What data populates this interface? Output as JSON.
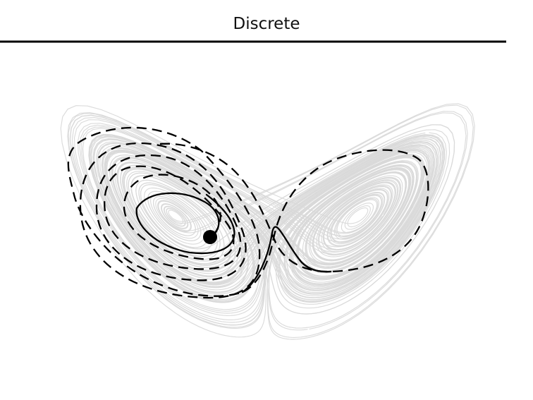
{
  "header": {
    "title": "Discrete"
  },
  "colors": {
    "background": "#ffffff",
    "attractor": "#d9d9d9",
    "trajectory": "#000000",
    "marker": "#000000",
    "rule": "#000000"
  },
  "legend": {
    "shown": false
  },
  "axes": {
    "shown": false
  }
}
